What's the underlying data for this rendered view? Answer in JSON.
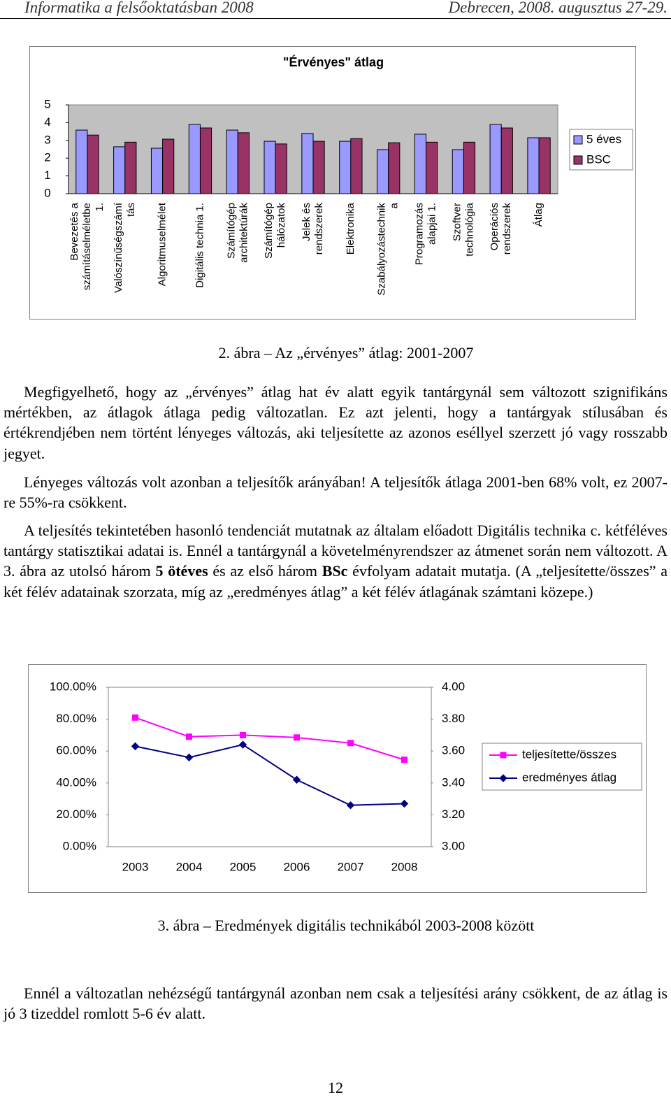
{
  "header": {
    "left": "Informatika a felsőoktatásban 2008",
    "right": "Debrecen, 2008. augusztus 27-29."
  },
  "chart_data": [
    {
      "type": "bar",
      "title": "\"Érvényes\" átlag",
      "categories": [
        "Bevezetés a\nszámításelméletbe\n1.",
        "Valószínűségszámí\ntás",
        "Algoritmuselmélet",
        "Digitális technia 1.",
        "Számítógép\narchitektúrák",
        "Számítógép\nhálózatok",
        "Jelek és\nrendszerek",
        "Elektronika",
        "Szabályozástechnik\na",
        "Programozás\nalapjai 1.",
        "Szoftver\ntechnológia",
        "Operációs\nrendszerek",
        "Átlag"
      ],
      "series": [
        {
          "name": "5 éves",
          "color": "#9999ff",
          "values": [
            3.58,
            2.64,
            2.56,
            3.9,
            3.58,
            2.95,
            3.39,
            2.95,
            2.48,
            3.35,
            2.48,
            3.9,
            3.15
          ]
        },
        {
          "name": "BSC",
          "color": "#993366",
          "values": [
            3.3,
            2.9,
            3.07,
            3.7,
            3.43,
            2.8,
            2.95,
            3.1,
            2.87,
            2.9,
            2.9,
            3.7,
            3.15
          ]
        }
      ],
      "ylim": [
        0,
        5
      ],
      "yticks": [
        0,
        1,
        2,
        3,
        4,
        5
      ],
      "grid": false,
      "legend": "right"
    },
    {
      "type": "line",
      "categories": [
        "2003",
        "2004",
        "2005",
        "2006",
        "2007",
        "2008"
      ],
      "series": [
        {
          "name": "teljesítette/összes",
          "color": "#ff00ff",
          "marker": "square",
          "values": [
            81,
            69,
            70,
            68.5,
            65,
            54.5
          ]
        },
        {
          "name": "eredményes átlag",
          "color": "#000080",
          "marker": "diamond",
          "axis": "y2",
          "values": [
            3.63,
            3.56,
            3.64,
            3.42,
            3.26,
            3.27
          ]
        }
      ],
      "ylim": [
        0,
        100
      ],
      "yticks": [
        {
          "value": 0,
          "label": "0.00%"
        },
        {
          "value": 20,
          "label": "20.00%"
        },
        {
          "value": 40,
          "label": "40.00%"
        },
        {
          "value": 60,
          "label": "60.00%"
        },
        {
          "value": 80,
          "label": "80.00%"
        },
        {
          "value": 100,
          "label": "100.00%"
        }
      ],
      "y2lim": [
        3,
        4
      ],
      "y2ticks": [
        {
          "value": 3,
          "label": "3.00"
        },
        {
          "value": 3.2,
          "label": "3.20"
        },
        {
          "value": 3.4,
          "label": "3.40"
        },
        {
          "value": 3.6,
          "label": "3.60"
        },
        {
          "value": 3.8,
          "label": "3.80"
        },
        {
          "value": 4,
          "label": "4.00"
        }
      ],
      "grid": false,
      "legend": "right"
    }
  ],
  "captions": [
    "2. ábra – Az „érvényes” átlag: 2001-2007",
    "3. ábra – Eredmények digitális technikából 2003-2008 között"
  ],
  "paragraphs": [
    "Megfigyelhető, hogy az „érvényes” átlag hat év alatt egyik tantárgynál sem változott szignifikáns mértékben, az átlagok átlaga pedig változatlan. Ez azt jelenti, hogy a tantárgyak stílusában és értékrendjében nem történt lényeges változás, aki teljesítette az azonos eséllyel szerzett jó vagy rosszabb jegyet.",
    "Lényeges változás volt azonban a teljesítők arányában! A teljesítők átlaga 2001-ben 68% volt, ez 2007-re 55%-ra csökkent.",
    [
      "A teljesítés tekintetében hasonló tendenciát mutatnak az általam előadott Digitális technika c. kétféléves tantárgy statisztikai adatai is. Ennél a tantárgynál a követelményrendszer az átmenet során nem változott. A 3. ábra az utolsó három ",
      "5 ötéves",
      " és az első három ",
      "BSc",
      " évfolyam adatait mutatja. (A „teljesítette/összes” a két félév adatainak szorzata, míg az „eredményes átlag” a két félév átlagának számtani közepe.)"
    ],
    "Ennél a változatlan nehézségű tantárgynál azonban nem csak a teljesítési arány csökkent, de az átlag is jó 3 tizeddel romlott 5-6 év alatt."
  ],
  "page_number": "12"
}
